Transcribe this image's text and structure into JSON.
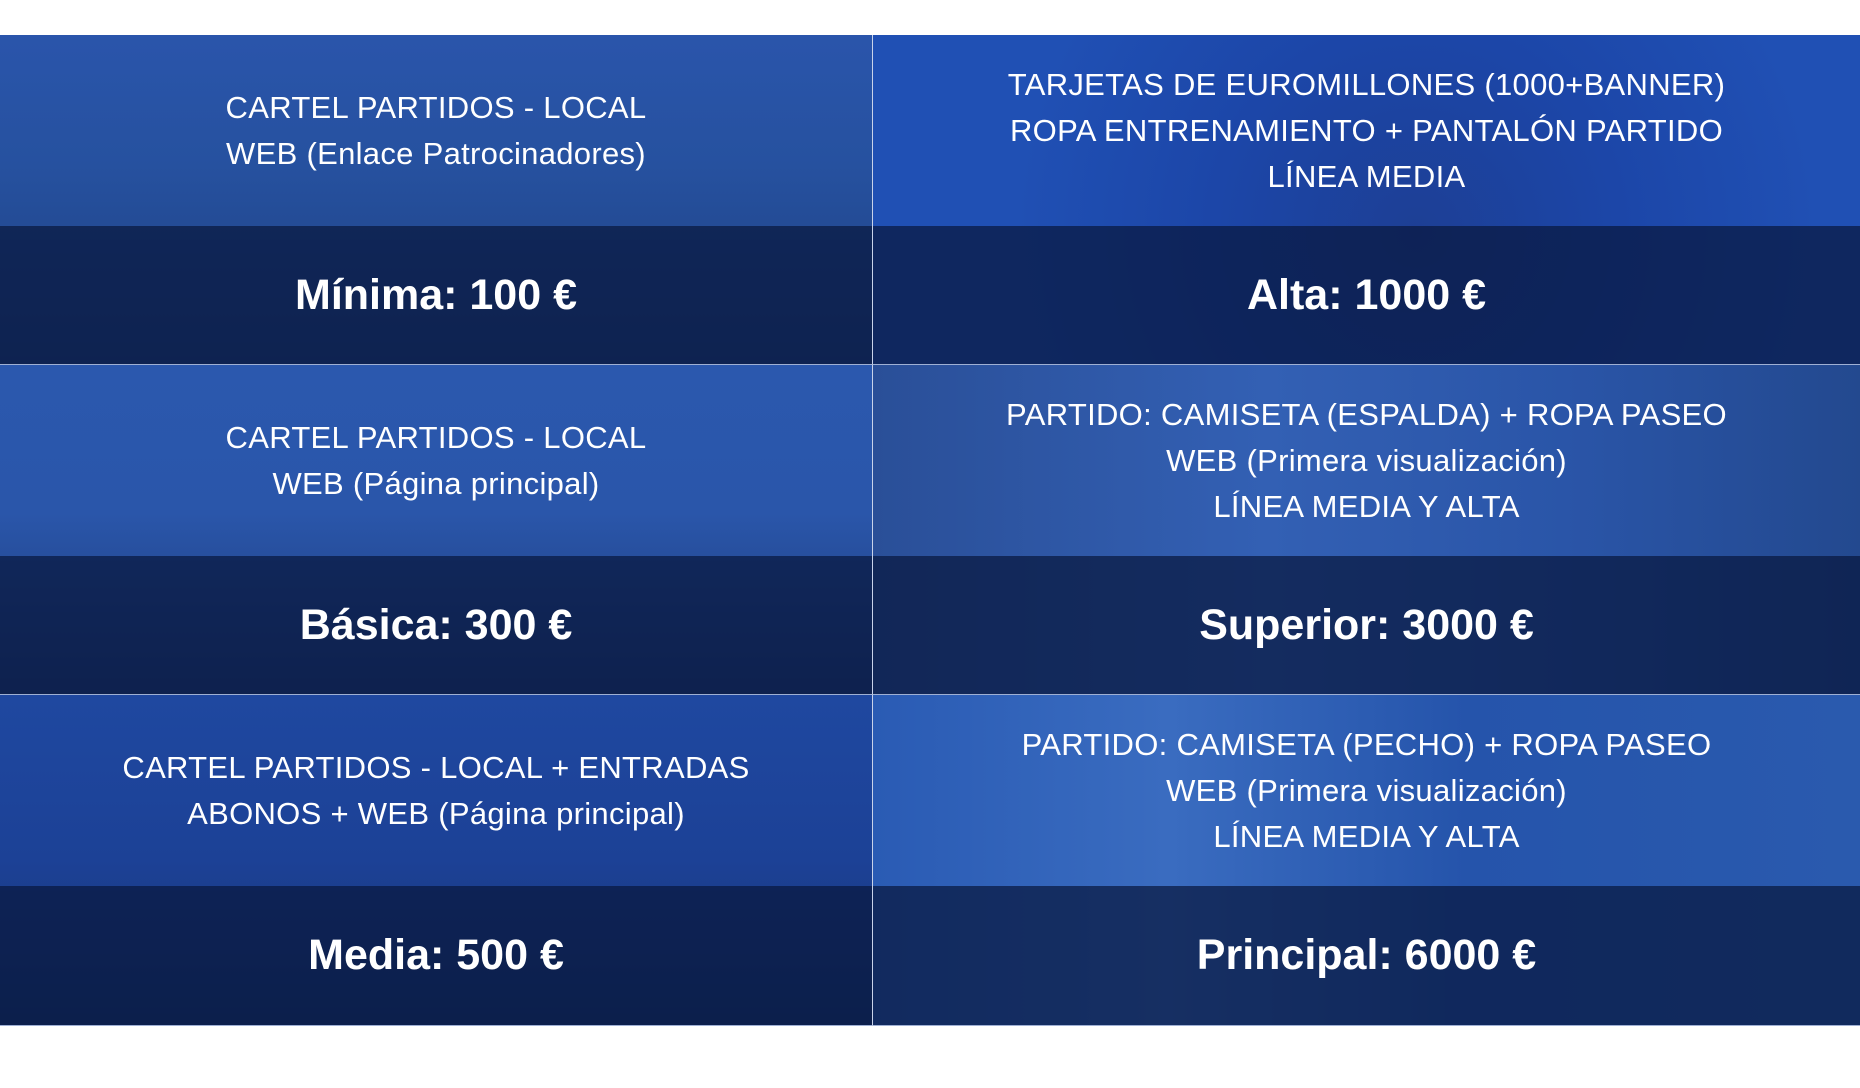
{
  "colors": {
    "panel_blue": "#2450a8",
    "band_dark": "#132a5c",
    "text": "#ffffff"
  },
  "packages": [
    {
      "lines": [
        "CARTEL PARTIDOS - LOCAL",
        "WEB (Enlace Patrocinadores)"
      ],
      "price": "Mínima: 100 €"
    },
    {
      "lines": [
        "TARJETAS DE EUROMILLONES (1000+BANNER)",
        "ROPA ENTRENAMIENTO + PANTALÓN PARTIDO",
        "LÍNEA MEDIA"
      ],
      "price": "Alta: 1000 €"
    },
    {
      "lines": [
        "CARTEL PARTIDOS - LOCAL",
        "WEB (Página principal)"
      ],
      "price": "Básica: 300 €"
    },
    {
      "lines": [
        "PARTIDO: CAMISETA (ESPALDA) + ROPA PASEO",
        "WEB (Primera visualización)",
        "LÍNEA MEDIA Y ALTA"
      ],
      "price": "Superior: 3000 €"
    },
    {
      "lines": [
        "CARTEL PARTIDOS - LOCAL + ENTRADAS",
        "ABONOS + WEB (Página principal)"
      ],
      "price": "Media: 500 €"
    },
    {
      "lines": [
        "PARTIDO: CAMISETA (PECHO) + ROPA PASEO",
        "WEB (Primera visualización)",
        "LÍNEA MEDIA Y ALTA"
      ],
      "price": "Principal: 6000 €"
    }
  ]
}
